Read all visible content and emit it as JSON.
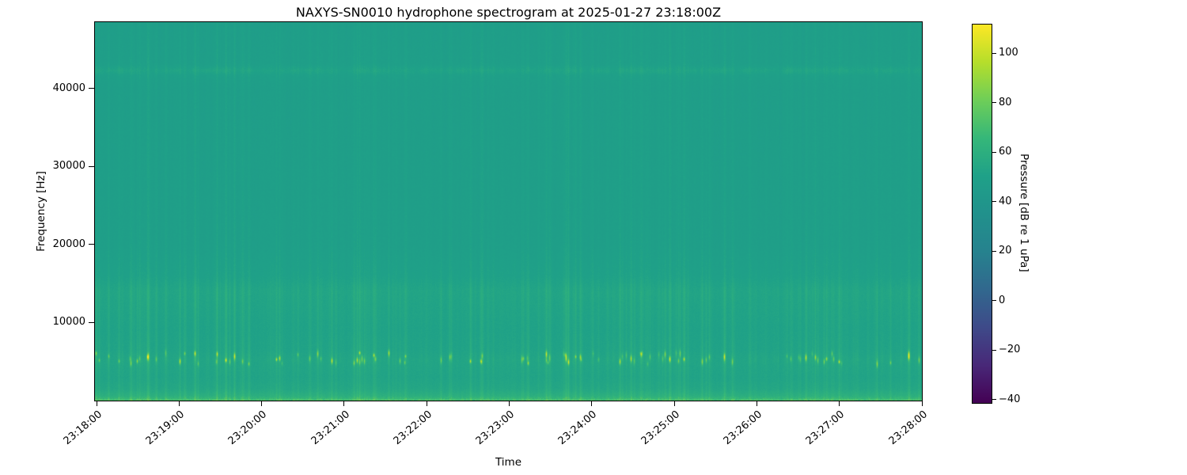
{
  "page": {
    "background": "#ffffff",
    "text_color": "#000000"
  },
  "chart_data": {
    "type": "heatmap",
    "subtype": "spectrogram",
    "title": "NAXYS-SN0010 hydrophone spectrogram at 2025-01-27 23:18:00Z",
    "xlabel": "Time",
    "ylabel": "Frequency [Hz]",
    "x_ticks": [
      "23:18:00",
      "23:19:00",
      "23:20:00",
      "23:21:00",
      "23:22:00",
      "23:23:00",
      "23:24:00",
      "23:25:00",
      "23:26:00",
      "23:27:00",
      "23:28:00"
    ],
    "y_ticks": [
      {
        "value": 10000,
        "label": "10000"
      },
      {
        "value": 20000,
        "label": "20000"
      },
      {
        "value": 30000,
        "label": "30000"
      },
      {
        "value": 40000,
        "label": "40000"
      }
    ],
    "ylim_hz": [
      0,
      48500
    ],
    "grid": false,
    "colormap": "viridis",
    "colormap_stops": [
      "#440154",
      "#482878",
      "#3e4a89",
      "#31688e",
      "#26828e",
      "#21918c",
      "#1fa188",
      "#35b779",
      "#6ece58",
      "#b5de2b",
      "#fde725"
    ],
    "colorbar": {
      "label": "Pressure [dB re 1 uPa]",
      "ticks": [
        {
          "value": 100,
          "label": "100"
        },
        {
          "value": 80,
          "label": "80"
        },
        {
          "value": 60,
          "label": "60"
        },
        {
          "value": 40,
          "label": "40"
        },
        {
          "value": 20,
          "label": "20"
        },
        {
          "value": 0,
          "label": "0"
        },
        {
          "value": -20,
          "label": "−20"
        },
        {
          "value": -40,
          "label": "−40"
        }
      ],
      "clim_db": [
        -41,
        112
      ]
    },
    "content": {
      "description": "Mostly uniform teal background (~48-53 dB re 1 uPa) across 0-48.5 kHz for 10 minutes; dense vertical broadband transient streaks every few seconds; bright impulsive click blips near 5-6 kHz; elevated levels below ~1.5 kHz with a bright speckled strip at the very bottom; faint intermittent narrowband line near 42 kHz.",
      "background_db_high_freq": 48.3,
      "background_db_mid_freq": 52,
      "click_band_hz": [
        4700,
        6200
      ],
      "click_peak_db": 88,
      "low_band_max_hz": 1500,
      "narrowband_line_hz": 42300,
      "freq_profile_db": [
        [
          0,
          67
        ],
        [
          150,
          65
        ],
        [
          600,
          60
        ],
        [
          1500,
          54.5
        ],
        [
          3000,
          52.5
        ],
        [
          5200,
          53.5
        ],
        [
          6500,
          52
        ],
        [
          9000,
          51.5
        ],
        [
          12000,
          52.5
        ],
        [
          14000,
          53.2
        ],
        [
          16000,
          50.5
        ],
        [
          20000,
          48.8
        ],
        [
          40000,
          48.3
        ],
        [
          41600,
          49.2
        ],
        [
          42300,
          50.6
        ],
        [
          43200,
          48.6
        ],
        [
          48500,
          48
        ]
      ],
      "streak_gain_db": [
        [
          0,
          9
        ],
        [
          1000,
          8
        ],
        [
          2500,
          6
        ],
        [
          4500,
          8
        ],
        [
          5200,
          14
        ],
        [
          6500,
          9
        ],
        [
          9000,
          7
        ],
        [
          14000,
          8
        ],
        [
          16000,
          4.5
        ],
        [
          25000,
          3.2
        ],
        [
          41000,
          3
        ],
        [
          42300,
          4.2
        ],
        [
          48500,
          3
        ]
      ],
      "streak_count": 230,
      "seed": 42
    }
  }
}
